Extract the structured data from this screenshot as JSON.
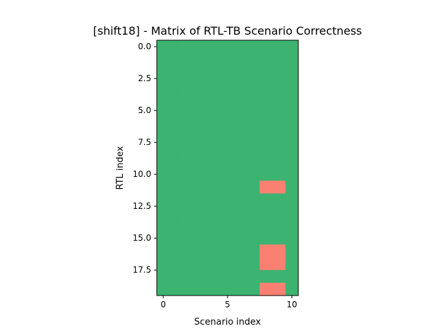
{
  "chart_data": {
    "type": "heatmap",
    "title": "[shift18] - Matrix of RTL-TB Scenario Correctness",
    "xlabel": "Scenario index",
    "ylabel": "RTL index",
    "rows": 20,
    "cols": 11,
    "xlim": [
      -0.5,
      10.5
    ],
    "ylim": [
      19.5,
      -0.5
    ],
    "xticks": [
      0,
      5,
      10
    ],
    "xtick_labels": [
      "0",
      "5",
      "10"
    ],
    "yticks": [
      0,
      2.5,
      5,
      7.5,
      10,
      12.5,
      15,
      17.5
    ],
    "ytick_labels": [
      "0.0",
      "2.5",
      "5.0",
      "7.5",
      "10.0",
      "12.5",
      "15.0",
      "17.5"
    ],
    "colors": {
      "correct": "#3cb371",
      "incorrect": "#fa8072"
    },
    "default_value": "correct",
    "incorrect_cells": [
      {
        "row": 11,
        "col": 8
      },
      {
        "row": 11,
        "col": 9
      },
      {
        "row": 16,
        "col": 8
      },
      {
        "row": 16,
        "col": 9
      },
      {
        "row": 17,
        "col": 8
      },
      {
        "row": 17,
        "col": 9
      },
      {
        "row": 19,
        "col": 8
      },
      {
        "row": 19,
        "col": 9
      }
    ]
  }
}
